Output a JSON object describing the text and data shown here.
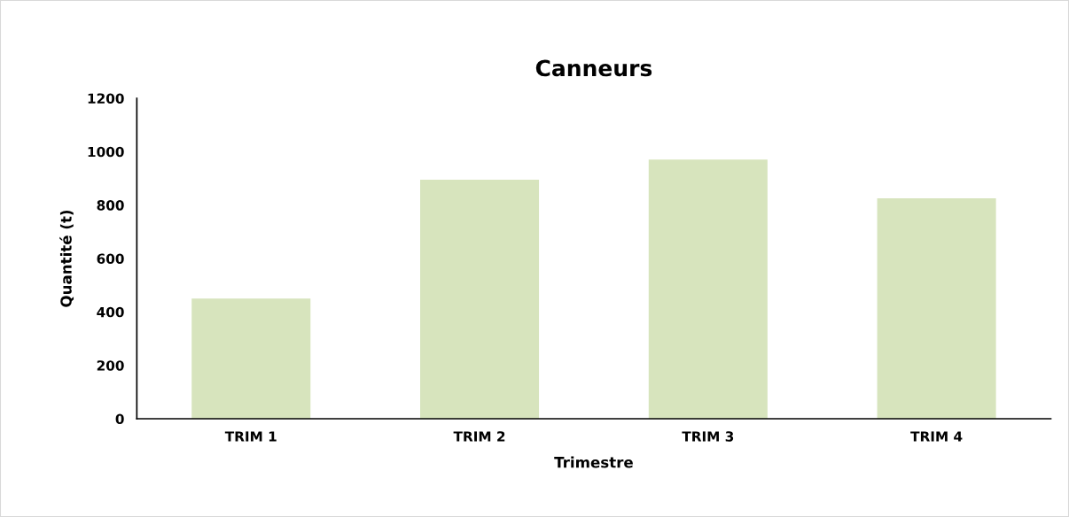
{
  "chart_data": {
    "type": "bar",
    "title": "Canneurs",
    "xlabel": "Trimestre",
    "ylabel": "Quantité (t)",
    "categories": [
      "TRIM 1",
      "TRIM 2",
      "TRIM 3",
      "TRIM 4"
    ],
    "values": [
      450,
      895,
      970,
      825
    ],
    "color": "#d7e4bd",
    "ylim": [
      0,
      1200
    ],
    "yticks": [
      0,
      200,
      400,
      600,
      800,
      1000,
      1200
    ],
    "grid": false,
    "legend": false
  }
}
